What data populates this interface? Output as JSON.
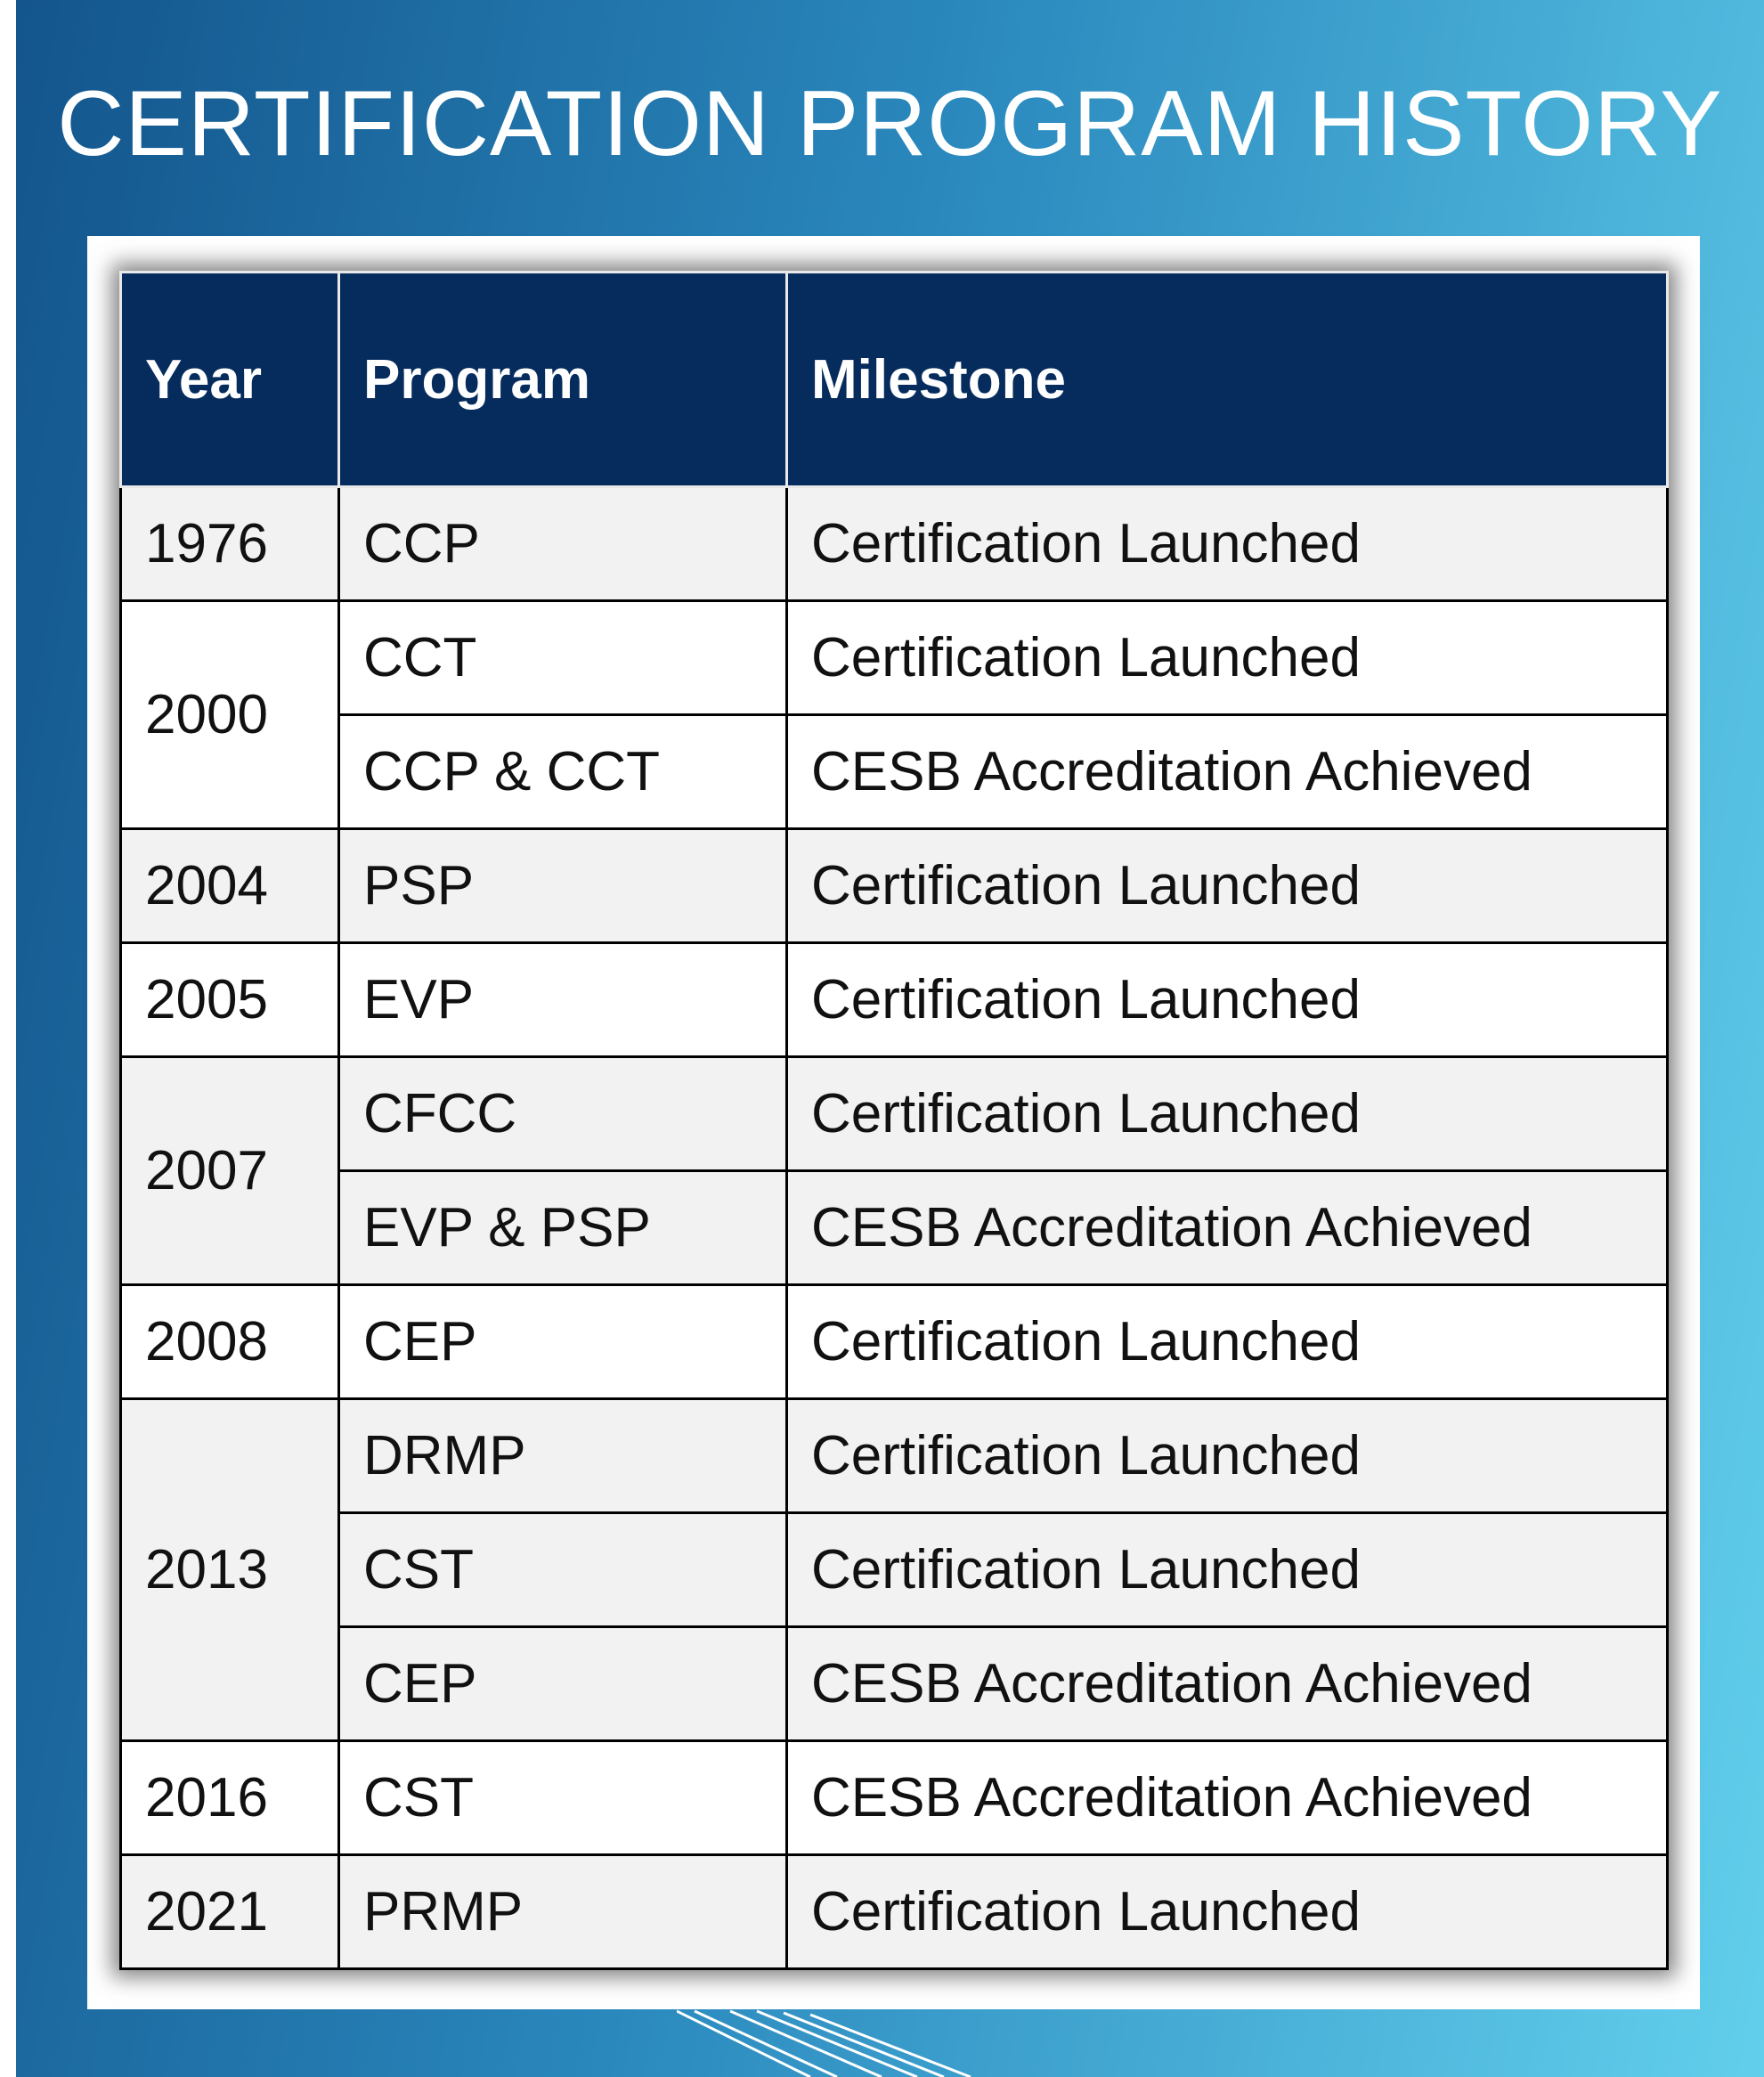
{
  "header": {
    "title": "CERTIFICATION PROGRAM HISTORY"
  },
  "table": {
    "columns": [
      "Year",
      "Program",
      "Milestone"
    ],
    "groups": [
      {
        "year": "1976",
        "entries": [
          {
            "program": "CCP",
            "milestone": "Certification Launched"
          }
        ]
      },
      {
        "year": "2000",
        "entries": [
          {
            "program": "CCT",
            "milestone": "Certification Launched"
          },
          {
            "program": "CCP & CCT",
            "milestone": "CESB Accreditation Achieved"
          }
        ]
      },
      {
        "year": "2004",
        "entries": [
          {
            "program": "PSP",
            "milestone": "Certification Launched"
          }
        ]
      },
      {
        "year": "2005",
        "entries": [
          {
            "program": "EVP",
            "milestone": "Certification Launched"
          }
        ]
      },
      {
        "year": "2007",
        "entries": [
          {
            "program": "CFCC",
            "milestone": "Certification Launched"
          },
          {
            "program": "EVP & PSP",
            "milestone": "CESB Accreditation Achieved"
          }
        ]
      },
      {
        "year": "2008",
        "entries": [
          {
            "program": "CEP",
            "milestone": "Certification Launched"
          }
        ]
      },
      {
        "year": "2013",
        "entries": [
          {
            "program": "DRMP",
            "milestone": "Certification Launched"
          },
          {
            "program": "CST",
            "milestone": "Certification Launched"
          },
          {
            "program": "CEP",
            "milestone": "CESB Accreditation Achieved"
          }
        ]
      },
      {
        "year": "2016",
        "entries": [
          {
            "program": "CST",
            "milestone": "CESB Accreditation Achieved"
          }
        ]
      },
      {
        "year": "2021",
        "entries": [
          {
            "program": "PRMP",
            "milestone": "Certification Launched"
          }
        ]
      }
    ]
  }
}
